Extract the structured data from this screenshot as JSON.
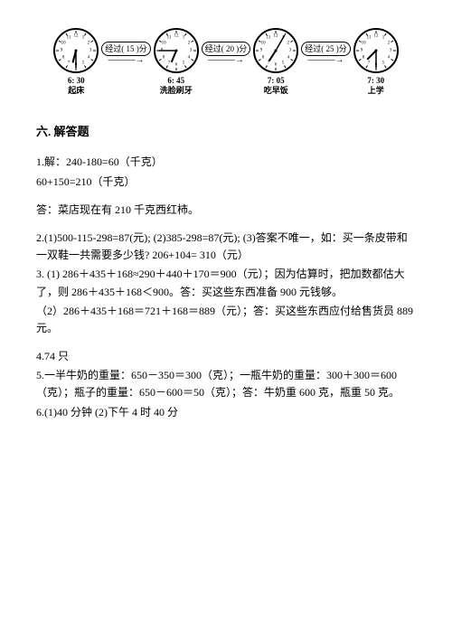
{
  "clocks": [
    {
      "time": "6: 30",
      "label": "起床",
      "hour_angle": 195,
      "minute_angle": 180
    },
    {
      "time": "6: 45",
      "label": "洗脸刷牙",
      "hour_angle": 202.5,
      "minute_angle": 270
    },
    {
      "time": "7: 05",
      "label": "吃早饭",
      "hour_angle": 212.5,
      "minute_angle": 30
    },
    {
      "time": "7: 30",
      "label": "上学",
      "hour_angle": 225,
      "minute_angle": 180
    }
  ],
  "connectors": [
    {
      "text": "经过( 15 )分"
    },
    {
      "text": "经过( 20 )分"
    },
    {
      "text": "经过( 25 )分"
    }
  ],
  "clock_style": {
    "face_color": "#ffffff",
    "border_color": "#000000",
    "border_width": 2,
    "tick_color": "#000000",
    "hand_color": "#000000",
    "center_dot_r": 1.5,
    "hour_hand_len": 13,
    "minute_hand_len": 19,
    "radius": 24,
    "tick_outer": 22,
    "tick_inner": 19,
    "num_radius": 16,
    "num_fontsize": 5
  },
  "section_title": "六. 解答题",
  "paragraphs": [
    {
      "cls": "para-tight",
      "text": "1.解：240-180=60（千克）"
    },
    {
      "cls": "para",
      "text": "60+150=210（千克）"
    },
    {
      "cls": "para",
      "text": "答：菜店现在有 210 千克西红柿。"
    },
    {
      "cls": "para-tight",
      "text": "2.(1)500-115-298=87(元); (2)385-298=87(元); (3)答案不唯一，如：买一条皮带和一双鞋一共需要多少钱? 206+104= 310（元）"
    },
    {
      "cls": "para-tight",
      "text": "3. (1) 286＋435＋168≈290＋440＋170＝900（元）；因为估算时，把加数都估大了，则 286＋435＋168＜900。答：买这些东西准备 900 元钱够。"
    },
    {
      "cls": "para",
      "text": "（2）286＋435＋168＝721＋168＝889（元）；答：买这些东西应付给售货员 889 元。"
    },
    {
      "cls": "para-tight",
      "text": "4.74 只"
    },
    {
      "cls": "para-tight",
      "text": "5.一半牛奶的重量：650－350＝300（克）；一瓶牛奶的重量：300＋300＝600（克）；瓶子的重量：650－600＝50（克）；答：牛奶重 600 克，瓶重 50 克。"
    },
    {
      "cls": "para-tight",
      "text": "6.(1)40 分钟 (2)下午 4 时 40 分"
    }
  ]
}
